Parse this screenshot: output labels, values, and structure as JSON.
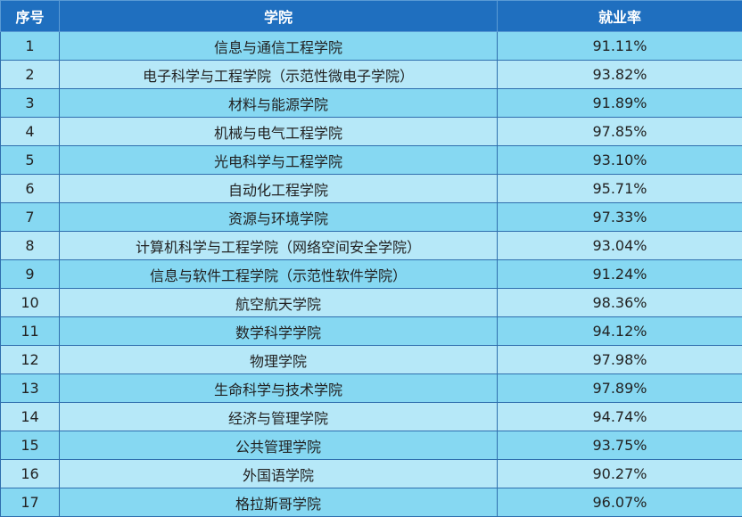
{
  "header": {
    "index": "序号",
    "college": "学院",
    "rate": "就业率"
  },
  "rows": [
    {
      "index": "1",
      "college": "信息与通信工程学院",
      "rate": "91.11%"
    },
    {
      "index": "2",
      "college": "电子科学与工程学院（示范性微电子学院）",
      "rate": "93.82%"
    },
    {
      "index": "3",
      "college": "材料与能源学院",
      "rate": "91.89%"
    },
    {
      "index": "4",
      "college": "机械与电气工程学院",
      "rate": "97.85%"
    },
    {
      "index": "5",
      "college": "光电科学与工程学院",
      "rate": "93.10%"
    },
    {
      "index": "6",
      "college": "自动化工程学院",
      "rate": "95.71%"
    },
    {
      "index": "7",
      "college": "资源与环境学院",
      "rate": "97.33%"
    },
    {
      "index": "8",
      "college": "计算机科学与工程学院（网络空间安全学院）",
      "rate": "93.04%"
    },
    {
      "index": "9",
      "college": "信息与软件工程学院（示范性软件学院）",
      "rate": "91.24%"
    },
    {
      "index": "10",
      "college": "航空航天学院",
      "rate": "98.36%"
    },
    {
      "index": "11",
      "college": "数学科学学院",
      "rate": "94.12%"
    },
    {
      "index": "12",
      "college": "物理学院",
      "rate": "97.98%"
    },
    {
      "index": "13",
      "college": "生命科学与技术学院",
      "rate": "97.89%"
    },
    {
      "index": "14",
      "college": "经济与管理学院",
      "rate": "94.74%"
    },
    {
      "index": "15",
      "college": "公共管理学院",
      "rate": "93.75%"
    },
    {
      "index": "16",
      "college": "外国语学院",
      "rate": "90.27%"
    },
    {
      "index": "17",
      "college": "格拉斯哥学院",
      "rate": "96.07%"
    }
  ]
}
